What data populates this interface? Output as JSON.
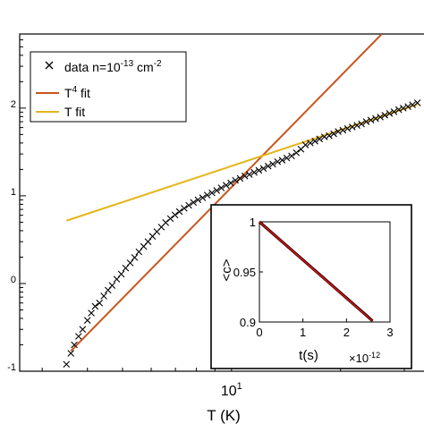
{
  "chart_data": [
    {
      "type": "scatter",
      "xscale": "log",
      "yscale": "log",
      "xlabel": "T (K)",
      "ylabel": "",
      "xlim": [
        2.6,
        34
      ],
      "ylim": [
        0.1,
        700
      ],
      "x_ticks": [
        {
          "value": 10,
          "base": "10",
          "exp": "1"
        }
      ],
      "y_ticks": [
        {
          "value": 0.1,
          "base": "",
          "exp": "-1"
        },
        {
          "value": 1,
          "base": "",
          "exp": "0"
        },
        {
          "value": 10,
          "base": "",
          "exp": "1"
        },
        {
          "value": 100,
          "base": "",
          "exp": "2"
        }
      ],
      "legend": {
        "position": "top-left",
        "items": [
          {
            "label": "data n=10",
            "label_sup": "-13",
            "label_tail": " cm",
            "label_tail_sup": "-2",
            "marker": "x",
            "color": "#000000"
          },
          {
            "label": "T",
            "label_sup": "4",
            "label_tail": " fit",
            "marker": "line",
            "color": "#c8561e"
          },
          {
            "label": "T fit",
            "marker": "line",
            "color": "#e3b51a"
          }
        ]
      },
      "series": [
        {
          "name": "data n=10^-13 cm^-2",
          "marker": "x",
          "color": "#000000",
          "x": [
            3.5,
            3.6,
            3.68,
            3.78,
            3.88,
            4.0,
            4.1,
            4.2,
            4.32,
            4.44,
            4.56,
            4.68,
            4.82,
            4.96,
            5.1,
            5.25,
            5.4,
            5.55,
            5.72,
            5.88,
            6.05,
            6.22,
            6.4,
            6.58,
            6.78,
            6.98,
            7.18,
            7.4,
            7.62,
            7.85,
            8.08,
            8.32,
            8.57,
            8.83,
            9.1,
            9.37,
            9.66,
            9.95,
            10.25,
            10.56,
            10.88,
            11.2,
            11.55,
            11.9,
            12.25,
            12.62,
            13.0,
            13.4,
            13.8,
            14.2,
            14.65,
            15.1,
            15.55,
            16.0,
            16.5,
            17.0,
            17.5,
            18.05,
            18.6,
            19.15,
            19.7,
            20.3,
            20.9,
            21.55,
            22.2,
            22.85,
            23.55,
            24.25,
            25.0,
            25.75,
            26.5,
            27.3,
            28.1,
            28.95,
            29.8,
            30.7,
            31.6,
            32.6
          ],
          "y": [
            0.12,
            0.16,
            0.2,
            0.25,
            0.3,
            0.38,
            0.46,
            0.55,
            0.6,
            0.72,
            0.84,
            0.95,
            1.12,
            1.28,
            1.5,
            1.72,
            1.98,
            2.3,
            2.65,
            3.0,
            3.45,
            3.9,
            4.4,
            4.95,
            5.5,
            6.05,
            6.6,
            7.2,
            7.8,
            8.4,
            9.0,
            9.5,
            10.2,
            10.8,
            11.5,
            12.3,
            13.2,
            14.0,
            15.0,
            15.8,
            16.8,
            17.5,
            18.5,
            19.5,
            20.5,
            21.8,
            23.0,
            24.5,
            25.5,
            27.0,
            28.5,
            31.0,
            34.0,
            38.0,
            40.0,
            42.0,
            44.5,
            47.0,
            48.5,
            51.0,
            54.0,
            56.0,
            58.5,
            61.0,
            63.5,
            66.0,
            70.0,
            73.0,
            76.0,
            79.0,
            83.0,
            87.0,
            91.0,
            96.0,
            100.0,
            104.0,
            109.0,
            115.0
          ]
        },
        {
          "name": "T^4 fit",
          "type": "line",
          "color": "#c8561e",
          "x": [
            3.6,
            26.0
          ],
          "y": [
            0.17,
            700
          ]
        },
        {
          "name": "T fit",
          "type": "line",
          "color": "#e3b51a",
          "x": [
            3.5,
            32.6
          ],
          "y": [
            5.2,
            110
          ]
        }
      ]
    },
    {
      "type": "line",
      "role": "inset",
      "xlabel": "t(s)",
      "ylabel": "<c>",
      "x_exponent_label": "×10",
      "x_exponent_sup": "-12",
      "xlim": [
        0,
        3
      ],
      "ylim": [
        0.9,
        1.0
      ],
      "x_ticks": [
        "0",
        "1",
        "2",
        "3"
      ],
      "y_ticks": [
        "0.9",
        "0.95",
        "1"
      ],
      "series": [
        {
          "name": "data",
          "color": "#000000",
          "x": [
            0,
            0.5,
            1.0,
            1.5,
            2.0,
            2.5,
            2.6
          ],
          "y": [
            1.0,
            0.981,
            0.962,
            0.943,
            0.924,
            0.905,
            0.901
          ]
        },
        {
          "name": "fit",
          "color": "#d01010",
          "x": [
            0,
            2.6
          ],
          "y": [
            1.0,
            0.901
          ]
        }
      ]
    }
  ]
}
